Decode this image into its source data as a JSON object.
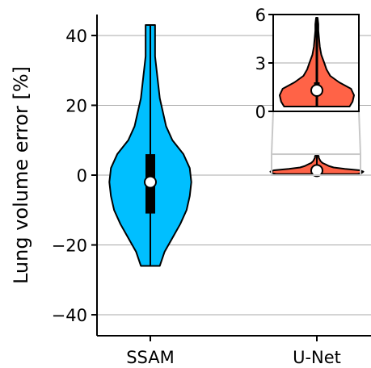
{
  "chart_data": [
    {
      "type": "violin",
      "categories": [
        "SSAM",
        "U-Net"
      ],
      "ylabel": "Lung volume error [%]",
      "ylim": [
        -46,
        46
      ],
      "yticks": [
        -40,
        -20,
        0,
        20,
        40
      ],
      "ytick_labels": [
        "−40",
        "−20",
        "0",
        "20",
        "40"
      ],
      "grid": "horizontal",
      "series": [
        {
          "category": "SSAM",
          "color": "#00bfff",
          "min": -26,
          "max": 43,
          "q1": -11,
          "q3": 6,
          "median": -2,
          "density": [
            [
              -26,
              6
            ],
            [
              -22,
              9
            ],
            [
              -18,
              14
            ],
            [
              -14,
              19
            ],
            [
              -10,
              23
            ],
            [
              -6,
              25
            ],
            [
              -2,
              26
            ],
            [
              2,
              25
            ],
            [
              6,
              21
            ],
            [
              10,
              14
            ],
            [
              14,
              10
            ],
            [
              18,
              8
            ],
            [
              22,
              6
            ],
            [
              26,
              5
            ],
            [
              30,
              4
            ],
            [
              34,
              3
            ],
            [
              38,
              3
            ],
            [
              43,
              3
            ]
          ]
        },
        {
          "category": "U-Net",
          "color": "#ff6347",
          "min": 0.3,
          "max": 5.8,
          "q1": 1.0,
          "q3": 1.8,
          "median": 1.3,
          "density": [
            [
              0.3,
              44
            ],
            [
              0.6,
              48
            ],
            [
              1.0,
              50
            ],
            [
              1.4,
              46
            ],
            [
              1.8,
              30
            ],
            [
              2.2,
              18
            ],
            [
              2.6,
              13
            ],
            [
              3.0,
              10
            ],
            [
              3.5,
              6
            ],
            [
              4.0,
              4
            ],
            [
              4.5,
              3
            ],
            [
              5.0,
              2
            ],
            [
              5.4,
              2
            ],
            [
              5.8,
              1
            ]
          ]
        }
      ]
    },
    {
      "type": "violin",
      "role": "inset",
      "category": "U-Net",
      "ylim": [
        0,
        6
      ],
      "yticks": [
        0,
        3,
        6
      ],
      "ytick_labels": [
        "0",
        "3",
        "6"
      ]
    }
  ]
}
